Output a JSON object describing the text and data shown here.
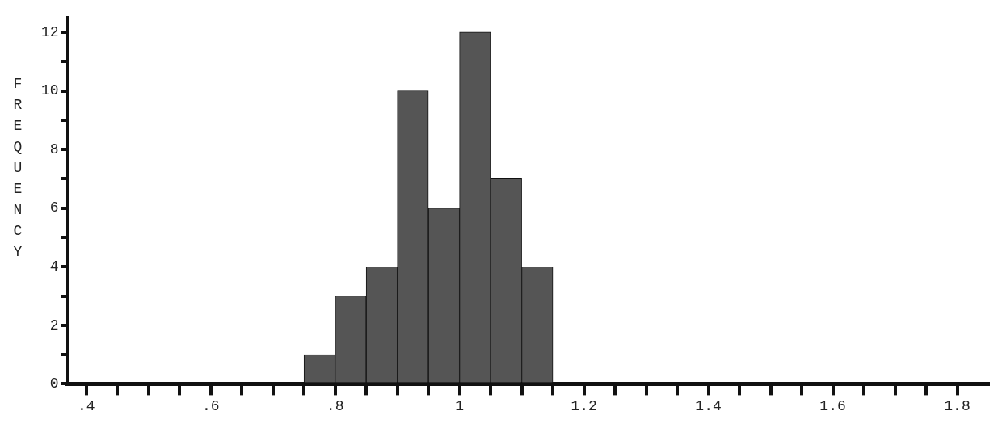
{
  "chart_data": {
    "type": "histogram",
    "ylabel": "FREQUENCY",
    "bins": [
      0.75,
      0.8,
      0.85,
      0.9,
      0.95,
      1.0,
      1.05,
      1.1,
      1.15
    ],
    "values": [
      1,
      3,
      4,
      10,
      6,
      12,
      7,
      4
    ],
    "color": "#555555",
    "xlim": [
      0.37,
      1.85
    ],
    "xticks": [
      {
        "value": 0.4,
        "label": ".4"
      },
      {
        "value": 0.45,
        "label": null
      },
      {
        "value": 0.5,
        "label": null
      },
      {
        "value": 0.55,
        "label": null
      },
      {
        "value": 0.6,
        "label": ".6"
      },
      {
        "value": 0.65,
        "label": null
      },
      {
        "value": 0.7,
        "label": null
      },
      {
        "value": 0.75,
        "label": null
      },
      {
        "value": 0.8,
        "label": ".8"
      },
      {
        "value": 0.85,
        "label": null
      },
      {
        "value": 0.9,
        "label": null
      },
      {
        "value": 0.95,
        "label": null
      },
      1,
      {
        "value": 1.05,
        "label": null
      },
      {
        "value": 1.1,
        "label": null
      },
      {
        "value": 1.15,
        "label": null
      },
      1.2,
      {
        "value": 1.25,
        "label": null
      },
      {
        "value": 1.3,
        "label": null
      },
      {
        "value": 1.35,
        "label": null
      },
      1.4,
      {
        "value": 1.45,
        "label": null
      },
      {
        "value": 1.5,
        "label": null
      },
      {
        "value": 1.55,
        "label": null
      },
      1.6,
      {
        "value": 1.65,
        "label": null
      },
      {
        "value": 1.7,
        "label": null
      },
      {
        "value": 1.75,
        "label": null
      },
      1.8
    ],
    "ylim": [
      0,
      12.5
    ],
    "yticks": [
      0,
      {
        "value": 1,
        "label": null
      },
      2,
      {
        "value": 3,
        "label": null
      },
      4,
      {
        "value": 5,
        "label": null
      },
      6,
      {
        "value": 7,
        "label": null
      },
      8,
      {
        "value": 9,
        "label": null
      },
      10,
      {
        "value": 11,
        "label": null
      },
      12
    ],
    "grid": false,
    "legend": false
  }
}
